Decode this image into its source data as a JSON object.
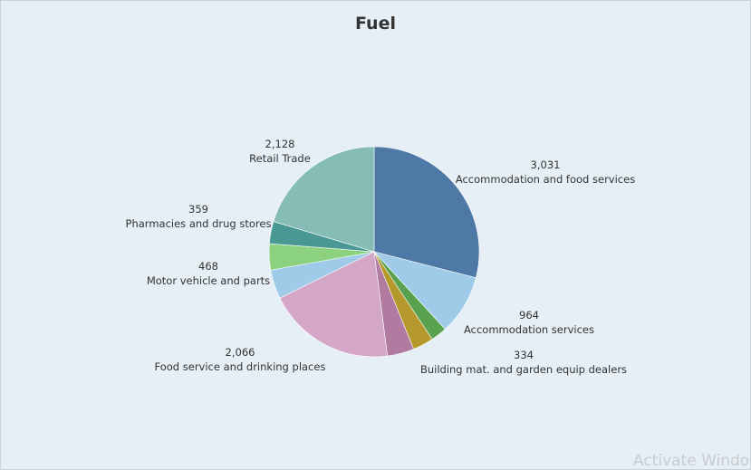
{
  "chart_data": {
    "type": "pie",
    "title": "Fuel",
    "slices": [
      {
        "label": "Accommodation and food services",
        "value": 3031,
        "value_label": "3,031",
        "color": "#4e79a7",
        "show_label": true
      },
      {
        "label": "Accommodation services",
        "value": 964,
        "value_label": "964",
        "color": "#a0cbe8",
        "show_label": true
      },
      {
        "label": "",
        "value": 260,
        "value_label": "",
        "color": "#59a14f",
        "show_label": false
      },
      {
        "label": "Building mat. and garden equip dealers",
        "value": 334,
        "value_label": "334",
        "color": "#b6992d",
        "show_label": true
      },
      {
        "label": "",
        "value": 430,
        "value_label": "",
        "color": "#b07aa1",
        "show_label": false
      },
      {
        "label": "Food service and drinking places",
        "value": 2066,
        "value_label": "2,066",
        "color": "#d4a6c8",
        "show_label": true
      },
      {
        "label": "Motor vehicle and parts",
        "value": 468,
        "value_label": "468",
        "color": "#a0cbe8",
        "show_label": true
      },
      {
        "label": "",
        "value": 420,
        "value_label": "",
        "color": "#8cd17d",
        "show_label": false
      },
      {
        "label": "Pharmacies and drug stores",
        "value": 359,
        "value_label": "359",
        "color": "#499894",
        "show_label": true
      },
      {
        "label": "Retail Trade",
        "value": 2128,
        "value_label": "2,128",
        "color": "#86bcb6",
        "show_label": true
      }
    ],
    "legend": "none",
    "start_angle": "12 o'clock",
    "direction": "clockwise"
  },
  "watermark": "Activate Windo"
}
